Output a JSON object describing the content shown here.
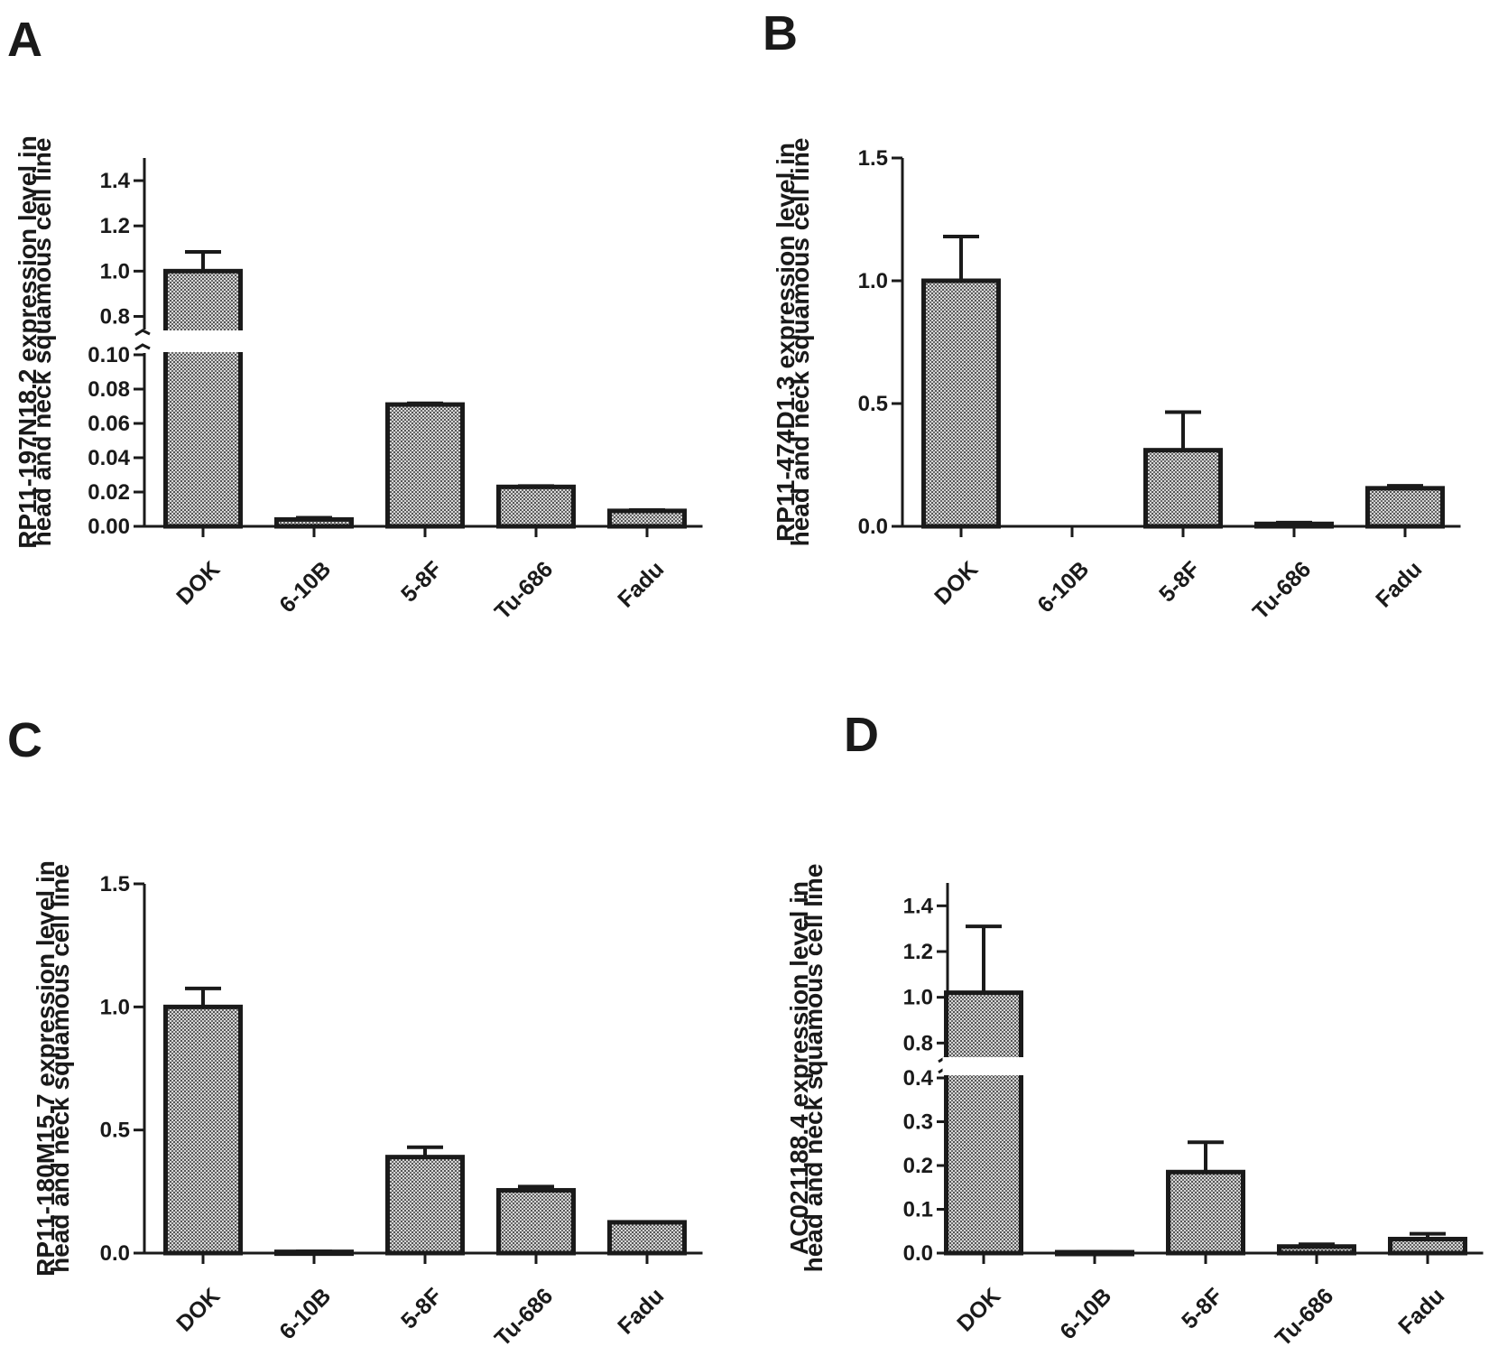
{
  "chart_data": [
    {
      "panel": "A",
      "type": "bar",
      "ylabel_lines": [
        "RP11-197N18.2 expression level in",
        "head and neck squamous cell line"
      ],
      "categories": [
        "DOK",
        "6-10B",
        "5-8F",
        "Tu-686",
        "Fadu"
      ],
      "values": [
        1.0,
        0.004,
        0.071,
        0.023,
        0.009
      ],
      "errors": [
        0.085,
        0.001,
        0.0007,
        0.0005,
        0.0005
      ],
      "y_break": true,
      "lower_range": [
        0,
        0.1
      ],
      "upper_range": [
        0.75,
        1.5
      ],
      "lower_ticks": [
        "0.00",
        "0.02",
        "0.04",
        "0.06",
        "0.08",
        "0.10"
      ],
      "upper_ticks": [
        "0.8",
        "1.0",
        "1.2",
        "1.4"
      ]
    },
    {
      "panel": "B",
      "type": "bar",
      "ylabel_lines": [
        "RP11-474D1.3 expression level in",
        "head and neck squamous cell line"
      ],
      "categories": [
        "DOK",
        "6-10B",
        "5-8F",
        "Tu-686",
        "Fadu"
      ],
      "values": [
        1.0,
        0.0,
        0.31,
        0.01,
        0.155
      ],
      "errors": [
        0.18,
        0.0,
        0.155,
        0.005,
        0.01
      ],
      "ylim": [
        0,
        1.5
      ],
      "ticks": [
        "0.0",
        "0.5",
        "1.0",
        "1.5"
      ]
    },
    {
      "panel": "C",
      "type": "bar",
      "ylabel_lines": [
        "RP11-180M15.7 expression level in",
        "head and neck squamous cell line"
      ],
      "categories": [
        "DOK",
        "6-10B",
        "5-8F",
        "Tu-686",
        "Fadu"
      ],
      "values": [
        1.0,
        0.005,
        0.39,
        0.255,
        0.125
      ],
      "errors": [
        0.075,
        0.002,
        0.04,
        0.015,
        0.0
      ],
      "ylim": [
        0,
        1.5
      ],
      "ticks": [
        "0.0",
        "0.5",
        "1.0",
        "1.5"
      ]
    },
    {
      "panel": "D",
      "type": "bar",
      "ylabel_lines": [
        "AC021188.4 expression level in",
        "head and neck squamous cell line"
      ],
      "categories": [
        "DOK",
        "6-10B",
        "5-8F",
        "Tu-686",
        "Fadu"
      ],
      "values": [
        1.02,
        0.002,
        0.185,
        0.015,
        0.032
      ],
      "errors": [
        0.29,
        0.001,
        0.068,
        0.005,
        0.012
      ],
      "y_break": true,
      "lower_range": [
        0,
        0.4
      ],
      "upper_range": [
        0.75,
        1.5
      ],
      "lower_ticks": [
        "0.0",
        "0.1",
        "0.2",
        "0.3",
        "0.4"
      ],
      "upper_ticks": [
        "0.8",
        "1.0",
        "1.2",
        "1.4"
      ]
    }
  ]
}
